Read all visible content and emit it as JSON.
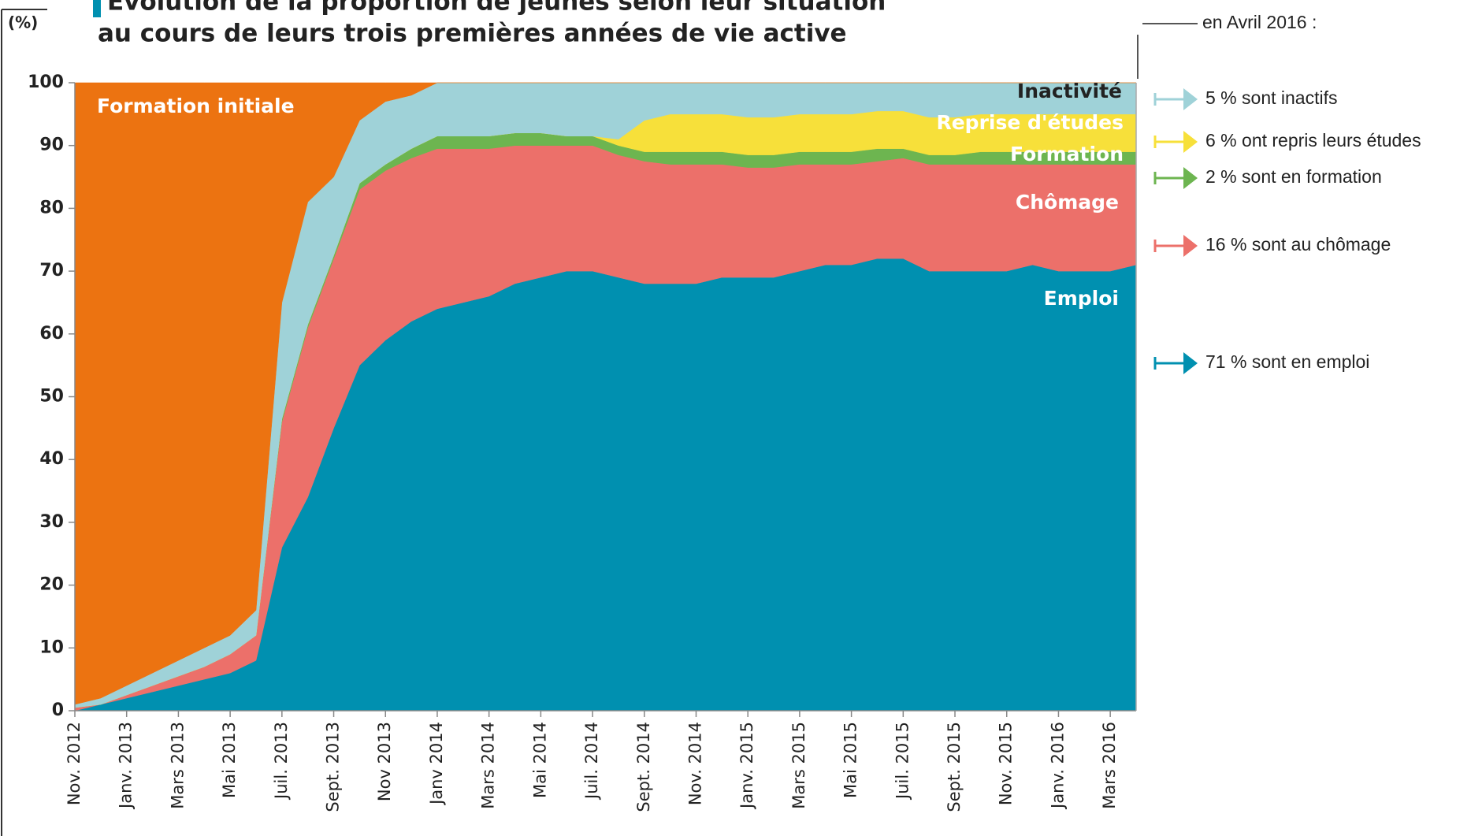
{
  "chart_data": {
    "type": "stacked_area",
    "title": "Évolution de la proportion de jeunes selon leur situation",
    "subtitle": "au cours de leurs trois premières années de vie active",
    "ylabel": "(%)",
    "categories": [
      "Nov. 2012",
      null,
      "Janv. 2013",
      null,
      "Mars 2013",
      null,
      "Mai 2013",
      null,
      "Juil. 2013",
      null,
      "Sept. 2013",
      null,
      "Nov 2013",
      null,
      "Janv 2014",
      null,
      "Mars 2014",
      null,
      "Mai 2014",
      null,
      "Juil. 2014",
      null,
      "Sept. 2014",
      null,
      "Nov. 2014",
      null,
      "Janv. 2015",
      null,
      "Mars 2015",
      null,
      "Mai 2015",
      null,
      "Juil. 2015",
      null,
      "Sept. 2015",
      null,
      "Nov. 2015",
      null,
      "Janv. 2016",
      null,
      "Mars 2016",
      null
    ],
    "series": [
      {
        "name": "Emploi",
        "color": "#0090b0",
        "values": [
          0,
          1,
          2,
          3,
          4,
          5,
          6,
          8,
          26,
          34,
          45,
          55,
          59,
          62,
          64,
          65,
          66,
          68,
          69,
          70,
          70,
          69,
          68,
          68,
          68,
          69,
          69,
          69,
          70,
          71,
          71,
          72,
          72,
          70,
          70,
          70,
          70,
          71,
          70,
          70,
          70,
          71
        ]
      },
      {
        "name": "Chômage",
        "color": "#ec706a",
        "values": [
          0.5,
          0,
          0.5,
          1,
          1.5,
          2,
          3,
          4,
          20,
          27,
          27,
          28,
          27,
          26,
          25.5,
          24.5,
          23.5,
          22,
          21,
          20,
          20,
          19.5,
          19.5,
          19,
          19,
          18,
          17.5,
          17.5,
          17,
          16,
          16,
          15.5,
          16,
          17,
          17,
          17,
          17,
          16,
          17,
          17,
          17,
          16
        ]
      },
      {
        "name": "Formation",
        "color": "#6db550",
        "values": [
          0,
          0,
          0,
          0,
          0,
          0,
          0,
          0,
          0.5,
          0.5,
          0.5,
          1,
          1,
          1.5,
          2,
          2,
          2,
          2,
          2,
          1.5,
          1.5,
          1.5,
          1.5,
          2,
          2,
          2,
          2,
          2,
          2,
          2,
          2,
          2,
          1.5,
          1.5,
          1.5,
          2,
          2,
          2,
          2,
          2,
          2,
          2
        ]
      },
      {
        "name": "Reprise d'études",
        "color": "#f7e03a",
        "values": [
          0,
          0,
          0,
          0,
          0,
          0,
          0,
          0,
          0,
          0,
          0,
          0,
          0,
          0,
          0,
          0,
          0,
          0,
          0,
          0,
          0,
          1,
          5,
          6,
          6,
          6,
          6,
          6,
          6,
          6,
          6,
          6,
          6,
          6,
          6,
          6,
          6,
          6,
          6,
          6,
          6,
          6
        ]
      },
      {
        "name": "Inactivité",
        "color": "#9fd2d8",
        "values": [
          0.5,
          1,
          1.5,
          2,
          2.5,
          3,
          3,
          4,
          18.5,
          19.5,
          12.5,
          10,
          10,
          8.5,
          8.5,
          8.5,
          8.5,
          8,
          8,
          8.5,
          8.5,
          9,
          6,
          5,
          5,
          5,
          5.5,
          5.5,
          5,
          5,
          5,
          4.5,
          4.5,
          5.5,
          5.5,
          5,
          5,
          5,
          5,
          5,
          5,
          5
        ]
      },
      {
        "name": "Formation initiale",
        "color": "#ec7311",
        "values": [
          99,
          98,
          96,
          94,
          92,
          90,
          88,
          84,
          35,
          19,
          15,
          6,
          3,
          2,
          0,
          0,
          0,
          0,
          0,
          0,
          0,
          0,
          0,
          0,
          0,
          0,
          0,
          0,
          0,
          0,
          0,
          0,
          0,
          0,
          0,
          0,
          0,
          0,
          0,
          0,
          0,
          0
        ]
      }
    ],
    "ylim": [
      0,
      100
    ],
    "yticks": [
      0,
      10,
      20,
      30,
      40,
      50,
      60,
      70,
      80,
      90,
      100
    ],
    "annotation_header": "en Avril 2016 :",
    "annotations": [
      {
        "text": "5 % sont inactifs",
        "color": "#9fd2d8"
      },
      {
        "text": "6 % ont repris leurs études",
        "color": "#f7e03a"
      },
      {
        "text": "2 % sont en formation",
        "color": "#6db550"
      },
      {
        "text": "16 % sont au chômage",
        "color": "#ec706a"
      },
      {
        "text": "71 % sont en emploi",
        "color": "#0090b0"
      }
    ]
  }
}
